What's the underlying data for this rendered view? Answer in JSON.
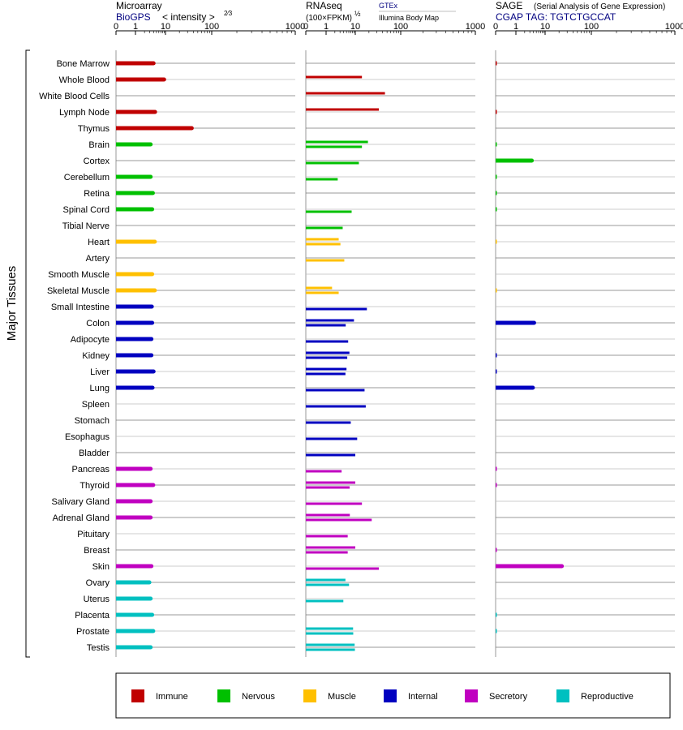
{
  "panels": {
    "microarray": {
      "title": "Microarray",
      "source_link": "BioGPS",
      "unit_label": "< intensity >",
      "unit_exponent": "2⁄3",
      "ticks": [
        "0",
        "1",
        "10",
        "100",
        "1000"
      ]
    },
    "rnaseq": {
      "title": "RNAseq",
      "unit_label": "(100×FPKM)",
      "unit_exponent": "½",
      "source_link": "GTEx",
      "source_secondary": "Illumina Body Map",
      "ticks": [
        "0",
        "1",
        "10",
        "100",
        "1000"
      ]
    },
    "sage": {
      "title": "SAGE",
      "subtitle": "(Serial Analysis of Gene Expression)",
      "tag_label": "CGAP TAG: TGTCTGCCAT",
      "ticks": [
        "0",
        "1",
        "10",
        "100",
        "1000"
      ]
    }
  },
  "group_label": "Major Tissues",
  "legend": [
    {
      "label": "Immune",
      "color": "#c00000"
    },
    {
      "label": "Nervous",
      "color": "#00c000"
    },
    {
      "label": "Muscle",
      "color": "#ffc000"
    },
    {
      "label": "Internal",
      "color": "#0000c0"
    },
    {
      "label": "Secretory",
      "color": "#c000c0"
    },
    {
      "label": "Reproductive",
      "color": "#00c0c0"
    }
  ],
  "chart_data": {
    "type": "bar",
    "scale": "nonlinear",
    "xlim": [
      0,
      1000
    ],
    "categories": [
      "Bone Marrow",
      "Whole Blood",
      "White Blood Cells",
      "Lymph Node",
      "Thymus",
      "Brain",
      "Cortex",
      "Cerebellum",
      "Retina",
      "Spinal Cord",
      "Tibial Nerve",
      "Heart",
      "Artery",
      "Smooth Muscle",
      "Skeletal Muscle",
      "Small Intestine",
      "Colon",
      "Adipocyte",
      "Kidney",
      "Liver",
      "Lung",
      "Spleen",
      "Stomach",
      "Esophagus",
      "Bladder",
      "Pancreas",
      "Thyroid",
      "Salivary Gland",
      "Adrenal Gland",
      "Pituitary",
      "Breast",
      "Skin",
      "Ovary",
      "Uterus",
      "Placenta",
      "Prostate",
      "Testis"
    ],
    "groups": [
      "Immune",
      "Immune",
      "Immune",
      "Immune",
      "Immune",
      "Nervous",
      "Nervous",
      "Nervous",
      "Nervous",
      "Nervous",
      "Nervous",
      "Muscle",
      "Muscle",
      "Muscle",
      "Muscle",
      "Internal",
      "Internal",
      "Internal",
      "Internal",
      "Internal",
      "Internal",
      "Internal",
      "Internal",
      "Internal",
      "Internal",
      "Secretory",
      "Secretory",
      "Secretory",
      "Secretory",
      "Secretory",
      "Secretory",
      "Secretory",
      "Reproductive",
      "Reproductive",
      "Reproductive",
      "Reproductive",
      "Reproductive"
    ],
    "microarray": [
      4,
      9,
      null,
      4.5,
      37,
      3.2,
      null,
      3.2,
      3.8,
      3.6,
      null,
      4.4,
      null,
      3.6,
      4.4,
      3.5,
      3.6,
      3.4,
      3.4,
      4,
      3.7,
      null,
      null,
      null,
      null,
      3.2,
      3.9,
      3.2,
      3.2,
      null,
      null,
      3.4,
      2.9,
      3.2,
      3.6,
      3.9,
      3.2
    ],
    "rnaseq_gtex": [
      null,
      14,
      45,
      33,
      null,
      19,
      null,
      null,
      null,
      null,
      null,
      2.7,
      null,
      null,
      1.6,
      null,
      9,
      null,
      6.3,
      5,
      null,
      null,
      null,
      null,
      null,
      null,
      10,
      null,
      6.5,
      null,
      10,
      null,
      4.6,
      null,
      null,
      8.4,
      9.5
    ],
    "rnaseq_bodymap": [
      null,
      null,
      null,
      null,
      null,
      14,
      12,
      2.5,
      null,
      7.5,
      3.7,
      3.1,
      4.2,
      null,
      2.7,
      18,
      4.7,
      5.7,
      5.3,
      4.6,
      16,
      17,
      7,
      11,
      10,
      3.4,
      6.4,
      14,
      23,
      5.5,
      5.5,
      33,
      6.1,
      3.9,
      null,
      8.5,
      9.7
    ],
    "sage": [
      0.05,
      null,
      null,
      0.05,
      null,
      0.05,
      3.5,
      0.05,
      0.05,
      0.05,
      null,
      0.02,
      null,
      null,
      0.02,
      null,
      4.2,
      null,
      0.05,
      0.05,
      3.8,
      null,
      null,
      null,
      null,
      0.05,
      0.05,
      null,
      null,
      null,
      0.05,
      23,
      null,
      null,
      0.05,
      0.05,
      null
    ]
  }
}
